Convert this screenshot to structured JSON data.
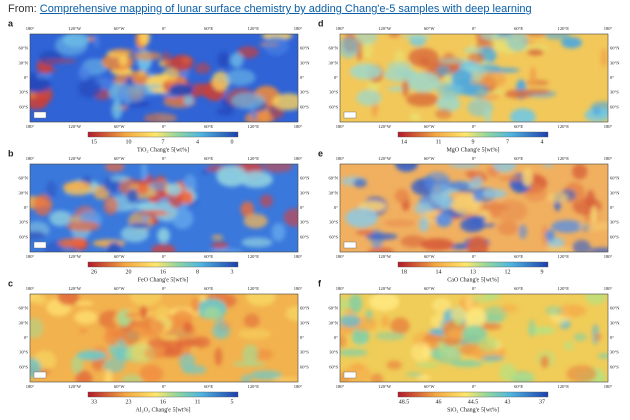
{
  "header": {
    "prefix": "From:",
    "title": "Comprehensive mapping of lunar surface chemistry by adding Chang'e-5 samples with deep learning"
  },
  "axes": {
    "lon": [
      "180°",
      "120°W",
      "60°W",
      "0°",
      "60°E",
      "120°E",
      "180°"
    ],
    "lat": [
      "60°N",
      "30°N",
      "0°",
      "30°S",
      "60°S"
    ]
  },
  "panels": [
    {
      "letter": "a",
      "colorbar_label": "TiO₂  Chang'e 5[wt%]",
      "colorbar_ticks": [
        "15",
        "10",
        "7",
        "4",
        "0"
      ]
    },
    {
      "letter": "d",
      "colorbar_label": "MgO  Chang'e 5[wt%]",
      "colorbar_ticks": [
        "14",
        "11",
        "9",
        "7",
        "4"
      ]
    },
    {
      "letter": "b",
      "colorbar_label": "FeO  Chang'e 5[wt%]",
      "colorbar_ticks": [
        "26",
        "20",
        "16",
        "8",
        "3"
      ]
    },
    {
      "letter": "e",
      "colorbar_label": "CaO  Chang'e 5[wt%]",
      "colorbar_ticks": [
        "18",
        "14",
        "13",
        "12",
        "9"
      ]
    },
    {
      "letter": "c",
      "colorbar_label": "Al₂O₃  Chang'e 5[wt%]",
      "colorbar_ticks": [
        "33",
        "23",
        "16",
        "11",
        "5"
      ]
    },
    {
      "letter": "f",
      "colorbar_label": "SiO₂  Chang'e 5[wt%]",
      "colorbar_ticks": [
        "48.5",
        "46",
        "44.5",
        "43",
        "37"
      ]
    }
  ]
}
